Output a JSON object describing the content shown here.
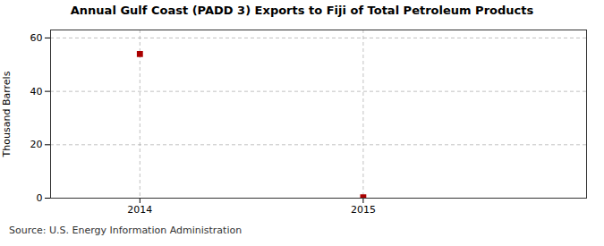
{
  "chart_data": {
    "type": "scatter",
    "title": "Annual Gulf Coast (PADD 3) Exports to Fiji of Total Petroleum Products",
    "ylabel": "Thousand Barrels",
    "source": "Source: U.S. Energy Information Administration",
    "x": [
      2014,
      2015
    ],
    "values": [
      54,
      0.3
    ],
    "color": "#aa0000",
    "marker": "square",
    "xlim": [
      2013.6,
      2016.0
    ],
    "xticks": [
      2014,
      2015
    ],
    "ylim": [
      0,
      63
    ],
    "yticks": [
      0,
      20,
      40,
      60
    ],
    "grid": true
  }
}
